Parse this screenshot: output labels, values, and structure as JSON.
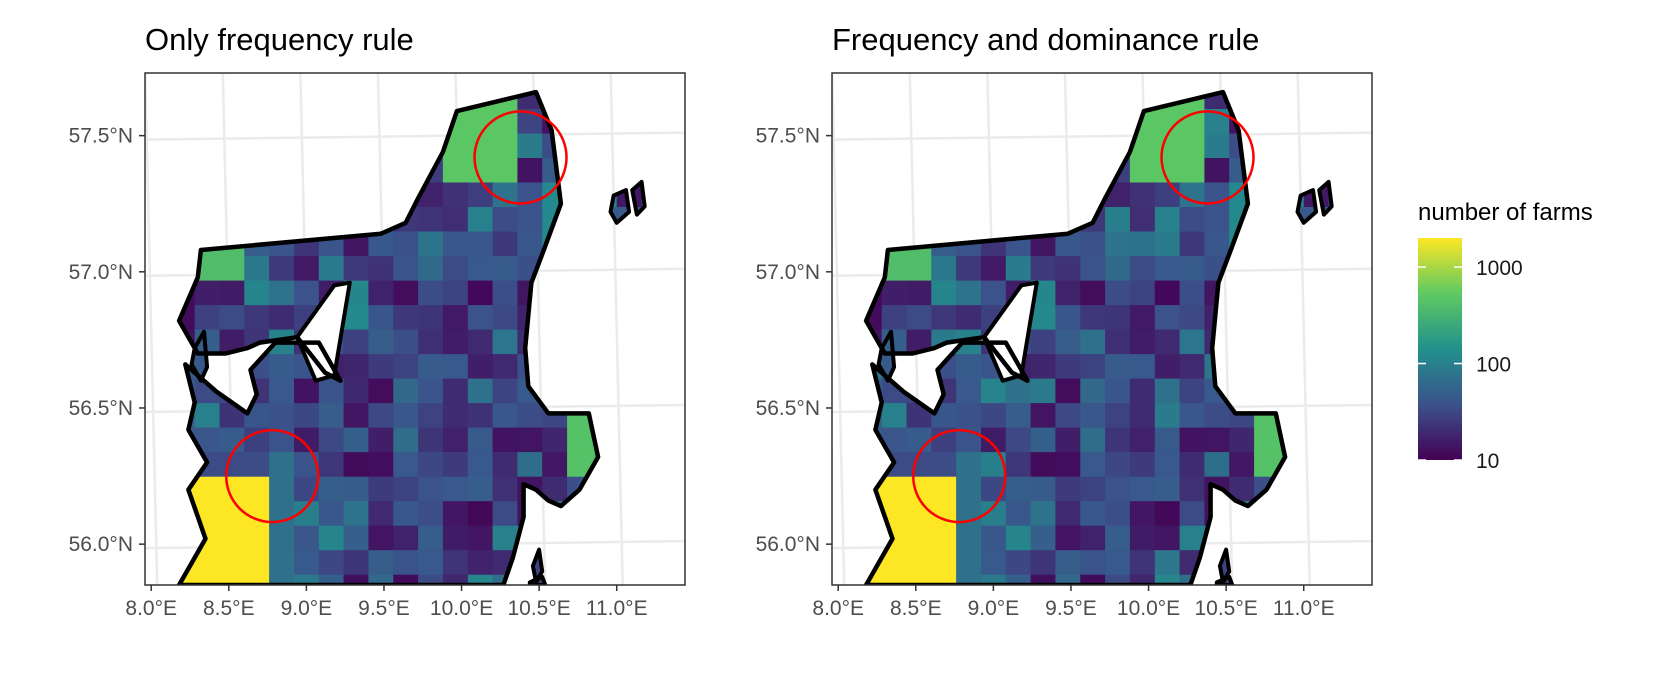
{
  "panels": [
    {
      "title": "Only frequency rule"
    },
    {
      "title": "Frequency and dominance rule"
    }
  ],
  "axes": {
    "x_ticks": [
      "8.0°E",
      "8.5°E",
      "9.0°E",
      "9.5°E",
      "10.0°E",
      "10.5°E",
      "11.0°E"
    ],
    "y_ticks": [
      "57.5°N",
      "57.0°N",
      "56.5°N",
      "56.0°N"
    ],
    "x_values": [
      8.0,
      8.5,
      9.0,
      9.5,
      10.0,
      10.5,
      11.0
    ],
    "y_values": [
      57.5,
      57.0,
      56.5,
      56.0
    ],
    "xlim": [
      7.96,
      11.44
    ],
    "ylim": [
      55.85,
      57.73
    ]
  },
  "legend": {
    "title": "number of farms",
    "labels": [
      "1000",
      "100",
      "10"
    ],
    "values": [
      1000,
      100,
      10
    ],
    "scale": "log10",
    "range": [
      10,
      2000
    ],
    "palette": "viridis",
    "colors": [
      "#440154",
      "#3b528b",
      "#21918c",
      "#5ec962",
      "#fde725"
    ]
  },
  "highlights": {
    "color": "#ff0000",
    "circles": [
      {
        "lon": 10.38,
        "lat": 57.42
      },
      {
        "lon": 8.78,
        "lat": 56.25
      }
    ]
  },
  "map": {
    "outline_color": "#000000",
    "grid_color": "#ebebeb",
    "high_cells": [
      {
        "lon": 8.5,
        "lat": 56.05,
        "value": 2000,
        "note": "yellow block"
      },
      {
        "lon": 10.15,
        "lat": 57.45,
        "value": 500
      },
      {
        "lon": 8.4,
        "lat": 57.0,
        "value": 400
      },
      {
        "lon": 10.75,
        "lat": 56.42,
        "value": 450
      }
    ]
  }
}
